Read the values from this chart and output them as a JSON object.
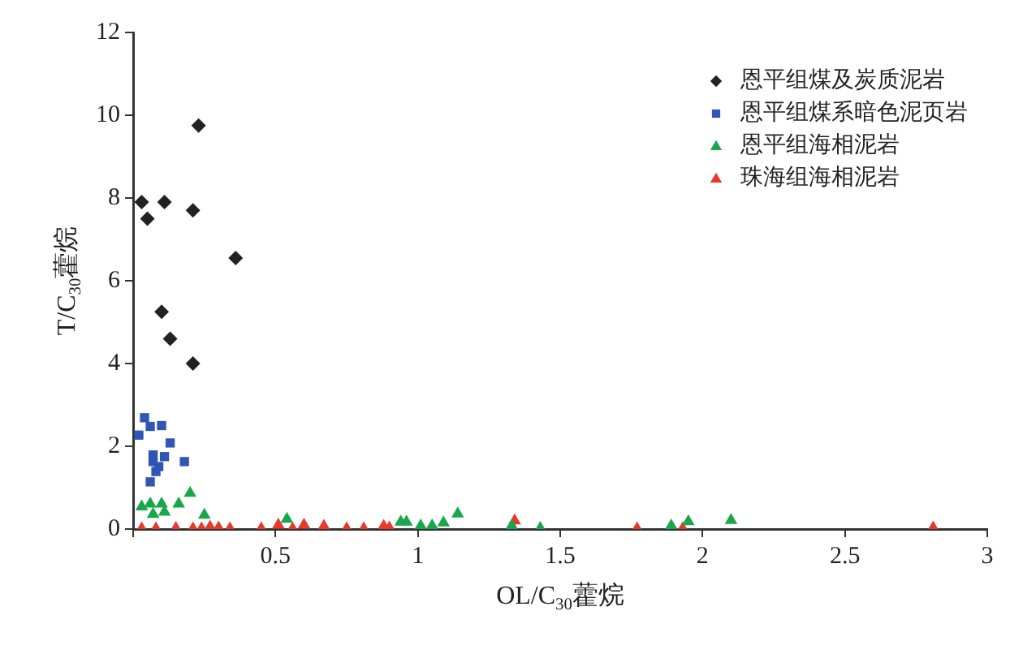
{
  "chart_data": {
    "type": "scatter",
    "xlabel": "OL/C$_{30}$藿烷",
    "ylabel": "T/C$_{30}$藿烷",
    "xlim": [
      0,
      3
    ],
    "xticks": [
      {
        "value": 0,
        "label": null
      },
      0.5,
      1,
      1.5,
      2,
      2.5,
      3
    ],
    "ylim": [
      0,
      12
    ],
    "yticks": [
      0,
      2,
      4,
      6,
      8,
      10,
      12
    ],
    "grid": false,
    "legend": "top right",
    "series": [
      {
        "name": "恩平组煤及炭质泥岩",
        "color": "#222222",
        "marker": "diamond",
        "x": [
          0.03,
          0.05,
          0.11,
          0.21,
          0.23,
          0.36,
          0.1,
          0.13,
          0.21
        ],
        "values": [
          7.9,
          7.5,
          7.9,
          7.7,
          9.75,
          6.55,
          5.25,
          4.6,
          4.0
        ]
      },
      {
        "name": "恩平组煤系暗色泥页岩",
        "color": "#2f55b5",
        "marker": "square",
        "x": [
          0.04,
          0.02,
          0.06,
          0.1,
          0.13,
          0.07,
          0.11,
          0.07,
          0.09,
          0.18,
          0.08,
          0.06
        ],
        "values": [
          2.69,
          2.27,
          2.48,
          2.5,
          2.08,
          1.79,
          1.75,
          1.63,
          1.51,
          1.63,
          1.39,
          1.14
        ]
      },
      {
        "name": "恩平组海相泥岩",
        "color": "#1aa64a",
        "marker": "triangle",
        "x": [
          0.03,
          0.06,
          0.1,
          0.16,
          0.2,
          0.25,
          0.07,
          0.11,
          0.54,
          0.94,
          0.96,
          1.01,
          1.05,
          1.09,
          1.14,
          1.33,
          1.43,
          1.89,
          1.95,
          2.1
        ],
        "values": [
          0.54,
          0.61,
          0.61,
          0.61,
          0.87,
          0.34,
          0.36,
          0.41,
          0.24,
          0.17,
          0.17,
          0.08,
          0.08,
          0.15,
          0.37,
          0.08,
          0.02,
          0.08,
          0.18,
          0.21
        ]
      },
      {
        "name": "珠海组海相泥岩",
        "color": "#e8392b",
        "marker": "triangle",
        "x": [
          0.03,
          0.08,
          0.15,
          0.21,
          0.24,
          0.27,
          0.3,
          0.34,
          0.45,
          0.51,
          0.56,
          0.6,
          0.67,
          0.75,
          0.81,
          0.88,
          0.9,
          1.34,
          1.77,
          1.93,
          2.81
        ],
        "values": [
          0.01,
          0.01,
          0.02,
          0.01,
          0.01,
          0.05,
          0.03,
          0.01,
          0.01,
          0.1,
          0.01,
          0.1,
          0.07,
          0.01,
          0.01,
          0.07,
          0.03,
          0.2,
          0.01,
          0.01,
          0.03
        ]
      }
    ]
  }
}
